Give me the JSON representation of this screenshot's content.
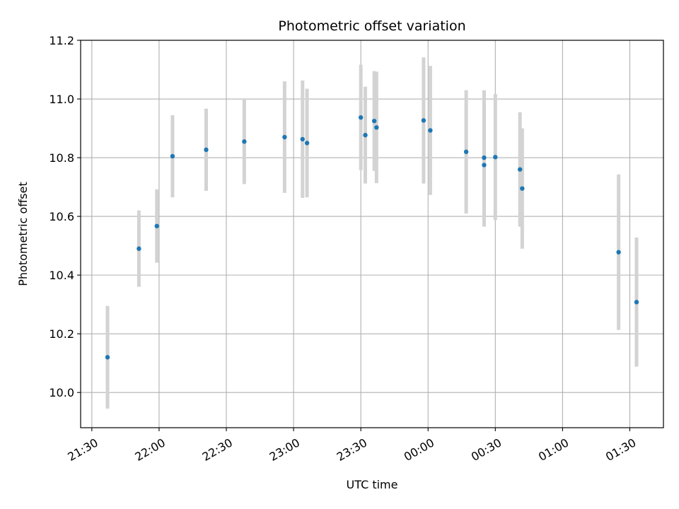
{
  "chart_data": {
    "type": "scatter",
    "title": "Photometric offset variation",
    "xlabel": "UTC time",
    "ylabel": "Photometric offset",
    "x_tick_labels": [
      "21:30",
      "22:00",
      "22:30",
      "23:00",
      "23:30",
      "00:00",
      "00:30",
      "01:00",
      "01:30"
    ],
    "x_ticks": [
      "2000-01-01T21:30",
      "2000-01-01T22:00",
      "2000-01-01T22:30",
      "2000-01-01T23:00",
      "2000-01-01T23:30",
      "2000-01-02T00:00",
      "2000-01-02T00:30",
      "2000-01-02T01:00",
      "2000-01-02T01:30"
    ],
    "xlim": [
      "2000-01-01T21:25",
      "2000-01-02T01:45"
    ],
    "y_tick_labels": [
      "10.0",
      "10.2",
      "10.4",
      "10.6",
      "10.8",
      "11.0",
      "11.2"
    ],
    "y_ticks": [
      10.0,
      10.2,
      10.4,
      10.6,
      10.8,
      11.0,
      11.2
    ],
    "ylim": [
      9.88,
      11.2
    ],
    "grid": true,
    "marker_color": "#1f77b4",
    "errorbar_color": "#d3d3d3",
    "points": [
      {
        "x": "2000-01-01T21:37",
        "y": 10.12,
        "err": 0.175
      },
      {
        "x": "2000-01-01T21:51",
        "y": 10.49,
        "err": 0.13
      },
      {
        "x": "2000-01-01T21:59",
        "y": 10.567,
        "err": 0.125
      },
      {
        "x": "2000-01-01T22:06",
        "y": 10.805,
        "err": 0.14
      },
      {
        "x": "2000-01-01T22:21",
        "y": 10.827,
        "err": 0.14
      },
      {
        "x": "2000-01-01T22:38",
        "y": 10.855,
        "err": 0.145
      },
      {
        "x": "2000-01-01T22:56",
        "y": 10.87,
        "err": 0.19
      },
      {
        "x": "2000-01-01T23:04",
        "y": 10.863,
        "err": 0.2
      },
      {
        "x": "2000-01-01T23:06",
        "y": 10.85,
        "err": 0.185
      },
      {
        "x": "2000-01-01T23:30",
        "y": 10.937,
        "err": 0.18
      },
      {
        "x": "2000-01-01T23:32",
        "y": 10.877,
        "err": 0.165
      },
      {
        "x": "2000-01-01T23:36",
        "y": 10.925,
        "err": 0.17
      },
      {
        "x": "2000-01-01T23:37",
        "y": 10.903,
        "err": 0.19
      },
      {
        "x": "2000-01-01T23:58",
        "y": 10.927,
        "err": 0.215
      },
      {
        "x": "2000-01-02T00:01",
        "y": 10.893,
        "err": 0.22
      },
      {
        "x": "2000-01-02T00:17",
        "y": 10.82,
        "err": 0.21
      },
      {
        "x": "2000-01-02T00:25",
        "y": 10.775,
        "err": 0.21
      },
      {
        "x": "2000-01-02T00:25",
        "y": 10.8,
        "err": 0.23
      },
      {
        "x": "2000-01-02T00:30",
        "y": 10.802,
        "err": 0.215
      },
      {
        "x": "2000-01-02T00:41",
        "y": 10.76,
        "err": 0.195
      },
      {
        "x": "2000-01-02T00:42",
        "y": 10.695,
        "err": 0.205
      },
      {
        "x": "2000-01-02T01:25",
        "y": 10.478,
        "err": 0.265
      },
      {
        "x": "2000-01-02T01:33",
        "y": 10.308,
        "err": 0.22
      }
    ]
  }
}
